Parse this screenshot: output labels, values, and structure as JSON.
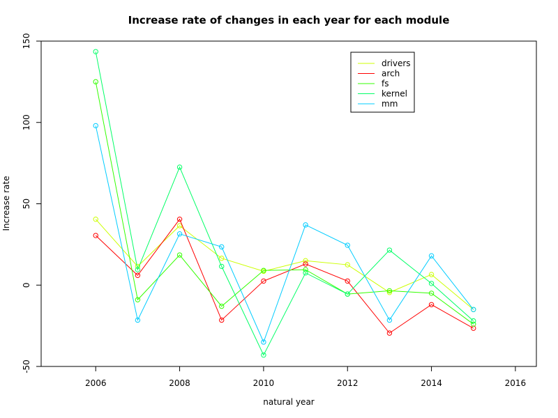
{
  "chart_data": {
    "type": "line",
    "title": "Increase rate of changes in each year for each module",
    "xlabel": "natural year",
    "ylabel": "Increase rate",
    "xlim": [
      2004.7,
      2016.5
    ],
    "ylim": [
      -50,
      150
    ],
    "x_ticks": [
      2006,
      2008,
      2010,
      2012,
      2014,
      2016
    ],
    "y_ticks": [
      -50,
      0,
      50,
      100,
      150
    ],
    "x_tick_labels": [
      "2006",
      "2008",
      "2010",
      "2012",
      "2014",
      "2016"
    ],
    "y_tick_labels": [
      "-50",
      "0",
      "50",
      "100",
      "150"
    ],
    "grid": false,
    "legend_position": "top-right",
    "x": [
      2006,
      2007,
      2008,
      2009,
      2010,
      2011,
      2012,
      2013,
      2014,
      2015
    ],
    "series": [
      {
        "name": "drivers",
        "color": "#CCFF00",
        "values": [
          40.5,
          11.5,
          36.5,
          16.5,
          8.5,
          15,
          12.5,
          -4.5,
          6.5,
          -15
        ]
      },
      {
        "name": "arch",
        "color": "#FF0000",
        "values": [
          30.5,
          6,
          40.5,
          -21.5,
          2.5,
          13,
          2.5,
          -29.5,
          -12,
          -26.5
        ]
      },
      {
        "name": "fs",
        "color": "#33FF00",
        "values": [
          125,
          -9,
          18.5,
          -13,
          9,
          9.5,
          -5.5,
          -3.5,
          -5,
          -24
        ]
      },
      {
        "name": "kernel",
        "color": "#00FF66",
        "values": [
          143.5,
          9.5,
          72.5,
          11.5,
          -43,
          7.5,
          -5.5,
          21.5,
          1,
          -22
        ]
      },
      {
        "name": "mm",
        "color": "#00CCFF",
        "values": [
          98,
          -21.5,
          31.5,
          23.5,
          -35,
          37,
          24.5,
          -21.5,
          18,
          -15
        ]
      }
    ]
  }
}
